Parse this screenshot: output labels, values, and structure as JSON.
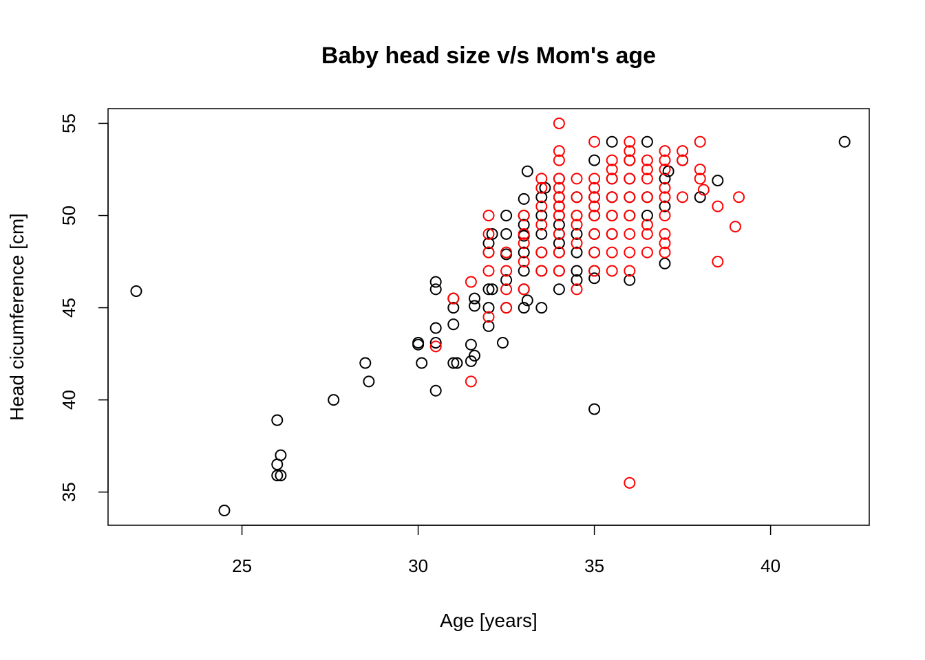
{
  "chart_data": {
    "type": "scatter",
    "title": "Baby head size v/s Mom's age",
    "xlabel": "Age [years]",
    "ylabel": "Head cicumference [cm]",
    "xlim": [
      21.2,
      42.8
    ],
    "ylim": [
      33.2,
      55.8
    ],
    "xticks": [
      25,
      30,
      35,
      40
    ],
    "yticks": [
      35,
      40,
      45,
      50,
      55
    ],
    "grid": false,
    "legend": "none",
    "series": [
      {
        "color": "#000000",
        "points": [
          [
            22.0,
            45.9
          ],
          [
            24.5,
            34.0
          ],
          [
            26.0,
            38.9
          ],
          [
            26.0,
            36.5
          ],
          [
            26.1,
            37.0
          ],
          [
            26.1,
            35.9
          ],
          [
            26.0,
            35.9
          ],
          [
            27.6,
            40.0
          ],
          [
            28.5,
            42.0
          ],
          [
            28.6,
            41.0
          ],
          [
            30.0,
            43.1
          ],
          [
            30.0,
            43.0
          ],
          [
            30.1,
            42.0
          ],
          [
            30.5,
            40.5
          ],
          [
            30.5,
            43.9
          ],
          [
            30.5,
            43.1
          ],
          [
            30.5,
            46.4
          ],
          [
            30.5,
            46.0
          ],
          [
            31.0,
            45.5
          ],
          [
            31.0,
            45.0
          ],
          [
            31.0,
            44.1
          ],
          [
            31.1,
            42.0
          ],
          [
            31.0,
            42.0
          ],
          [
            31.5,
            43.0
          ],
          [
            31.5,
            42.1
          ],
          [
            31.6,
            42.4
          ],
          [
            31.6,
            45.5
          ],
          [
            31.6,
            45.1
          ],
          [
            32.0,
            44.0
          ],
          [
            32.0,
            45.0
          ],
          [
            32.0,
            46.0
          ],
          [
            32.0,
            48.0
          ],
          [
            32.0,
            48.5
          ],
          [
            32.1,
            49.0
          ],
          [
            32.1,
            46.0
          ],
          [
            32.4,
            43.1
          ],
          [
            32.5,
            45.0
          ],
          [
            32.5,
            46.5
          ],
          [
            32.5,
            47.9
          ],
          [
            32.5,
            49.0
          ],
          [
            32.5,
            50.0
          ],
          [
            33.0,
            45.0
          ],
          [
            33.0,
            46.0
          ],
          [
            33.0,
            47.0
          ],
          [
            33.0,
            48.0
          ],
          [
            33.0,
            48.9
          ],
          [
            33.0,
            49.5
          ],
          [
            33.0,
            50.0
          ],
          [
            33.0,
            50.9
          ],
          [
            33.1,
            52.4
          ],
          [
            33.1,
            45.4
          ],
          [
            33.5,
            45.0
          ],
          [
            33.5,
            47.0
          ],
          [
            33.5,
            48.0
          ],
          [
            33.5,
            49.0
          ],
          [
            33.5,
            50.0
          ],
          [
            33.5,
            51.0
          ],
          [
            33.6,
            51.5
          ],
          [
            34.0,
            46.0
          ],
          [
            34.0,
            47.0
          ],
          [
            34.0,
            48.0
          ],
          [
            34.0,
            48.5
          ],
          [
            34.0,
            49.0
          ],
          [
            34.0,
            49.5
          ],
          [
            34.0,
            50.0
          ],
          [
            34.0,
            50.5
          ],
          [
            34.0,
            51.0
          ],
          [
            34.0,
            52.0
          ],
          [
            34.5,
            46.5
          ],
          [
            34.5,
            47.0
          ],
          [
            34.5,
            48.0
          ],
          [
            34.5,
            49.0
          ],
          [
            34.5,
            50.0
          ],
          [
            34.5,
            51.0
          ],
          [
            35.0,
            39.5
          ],
          [
            35.0,
            46.6
          ],
          [
            35.0,
            47.0
          ],
          [
            35.0,
            48.0
          ],
          [
            35.0,
            49.0
          ],
          [
            35.0,
            50.0
          ],
          [
            35.0,
            51.0
          ],
          [
            35.0,
            53.0
          ],
          [
            35.5,
            49.0
          ],
          [
            35.5,
            50.0
          ],
          [
            35.5,
            51.0
          ],
          [
            35.5,
            52.0
          ],
          [
            35.5,
            54.0
          ],
          [
            36.0,
            46.5
          ],
          [
            36.0,
            50.0
          ],
          [
            36.0,
            51.0
          ],
          [
            36.0,
            52.0
          ],
          [
            36.0,
            53.0
          ],
          [
            36.5,
            50.0
          ],
          [
            36.5,
            51.0
          ],
          [
            36.5,
            54.0
          ],
          [
            37.0,
            47.4
          ],
          [
            37.0,
            50.5
          ],
          [
            37.0,
            52.0
          ],
          [
            37.1,
            52.4
          ],
          [
            37.5,
            53.0
          ],
          [
            38.0,
            51.0
          ],
          [
            38.5,
            51.9
          ],
          [
            42.1,
            54.0
          ]
        ]
      },
      {
        "color": "#ff0000",
        "points": [
          [
            30.5,
            42.9
          ],
          [
            31.0,
            45.5
          ],
          [
            31.5,
            46.4
          ],
          [
            31.5,
            41.0
          ],
          [
            32.0,
            44.5
          ],
          [
            32.0,
            47.0
          ],
          [
            32.0,
            48.0
          ],
          [
            32.0,
            49.0
          ],
          [
            32.0,
            50.0
          ],
          [
            32.5,
            45.0
          ],
          [
            32.5,
            46.0
          ],
          [
            32.5,
            47.0
          ],
          [
            32.5,
            48.0
          ],
          [
            33.0,
            46.0
          ],
          [
            33.0,
            47.5
          ],
          [
            33.0,
            48.5
          ],
          [
            33.0,
            49.0
          ],
          [
            33.0,
            50.0
          ],
          [
            33.5,
            47.0
          ],
          [
            33.5,
            48.0
          ],
          [
            33.5,
            49.5
          ],
          [
            33.5,
            50.5
          ],
          [
            33.5,
            51.5
          ],
          [
            33.5,
            52.0
          ],
          [
            34.0,
            47.0
          ],
          [
            34.0,
            48.0
          ],
          [
            34.0,
            49.0
          ],
          [
            34.0,
            50.0
          ],
          [
            34.0,
            50.5
          ],
          [
            34.0,
            51.0
          ],
          [
            34.0,
            51.5
          ],
          [
            34.0,
            52.0
          ],
          [
            34.0,
            53.0
          ],
          [
            34.0,
            53.5
          ],
          [
            34.0,
            55.0
          ],
          [
            34.5,
            46.0
          ],
          [
            34.5,
            48.5
          ],
          [
            34.5,
            49.5
          ],
          [
            34.5,
            50.0
          ],
          [
            34.5,
            51.0
          ],
          [
            34.5,
            52.0
          ],
          [
            35.0,
            47.0
          ],
          [
            35.0,
            48.0
          ],
          [
            35.0,
            49.0
          ],
          [
            35.0,
            50.0
          ],
          [
            35.0,
            50.5
          ],
          [
            35.0,
            51.0
          ],
          [
            35.0,
            51.5
          ],
          [
            35.0,
            52.0
          ],
          [
            35.0,
            54.0
          ],
          [
            35.5,
            47.0
          ],
          [
            35.5,
            48.0
          ],
          [
            35.5,
            49.0
          ],
          [
            35.5,
            50.0
          ],
          [
            35.5,
            51.0
          ],
          [
            35.5,
            52.0
          ],
          [
            35.5,
            52.5
          ],
          [
            35.5,
            53.0
          ],
          [
            36.0,
            35.5
          ],
          [
            36.0,
            47.0
          ],
          [
            36.0,
            48.0
          ],
          [
            36.0,
            49.0
          ],
          [
            36.0,
            50.0
          ],
          [
            36.0,
            51.0
          ],
          [
            36.0,
            52.0
          ],
          [
            36.0,
            53.0
          ],
          [
            36.0,
            53.5
          ],
          [
            36.0,
            54.0
          ],
          [
            36.5,
            48.0
          ],
          [
            36.5,
            49.0
          ],
          [
            36.5,
            49.5
          ],
          [
            36.5,
            51.0
          ],
          [
            36.5,
            52.0
          ],
          [
            36.5,
            52.5
          ],
          [
            36.5,
            53.0
          ],
          [
            37.0,
            48.0
          ],
          [
            37.0,
            48.5
          ],
          [
            37.0,
            49.0
          ],
          [
            37.0,
            50.0
          ],
          [
            37.0,
            51.0
          ],
          [
            37.0,
            51.5
          ],
          [
            37.0,
            52.5
          ],
          [
            37.0,
            53.0
          ],
          [
            37.0,
            53.5
          ],
          [
            37.5,
            51.0
          ],
          [
            37.5,
            53.0
          ],
          [
            37.5,
            53.5
          ],
          [
            38.0,
            52.0
          ],
          [
            38.0,
            52.5
          ],
          [
            38.0,
            54.0
          ],
          [
            38.1,
            51.4
          ],
          [
            38.5,
            47.5
          ],
          [
            38.5,
            50.5
          ],
          [
            39.0,
            49.4
          ],
          [
            39.1,
            51.0
          ]
        ]
      }
    ]
  }
}
